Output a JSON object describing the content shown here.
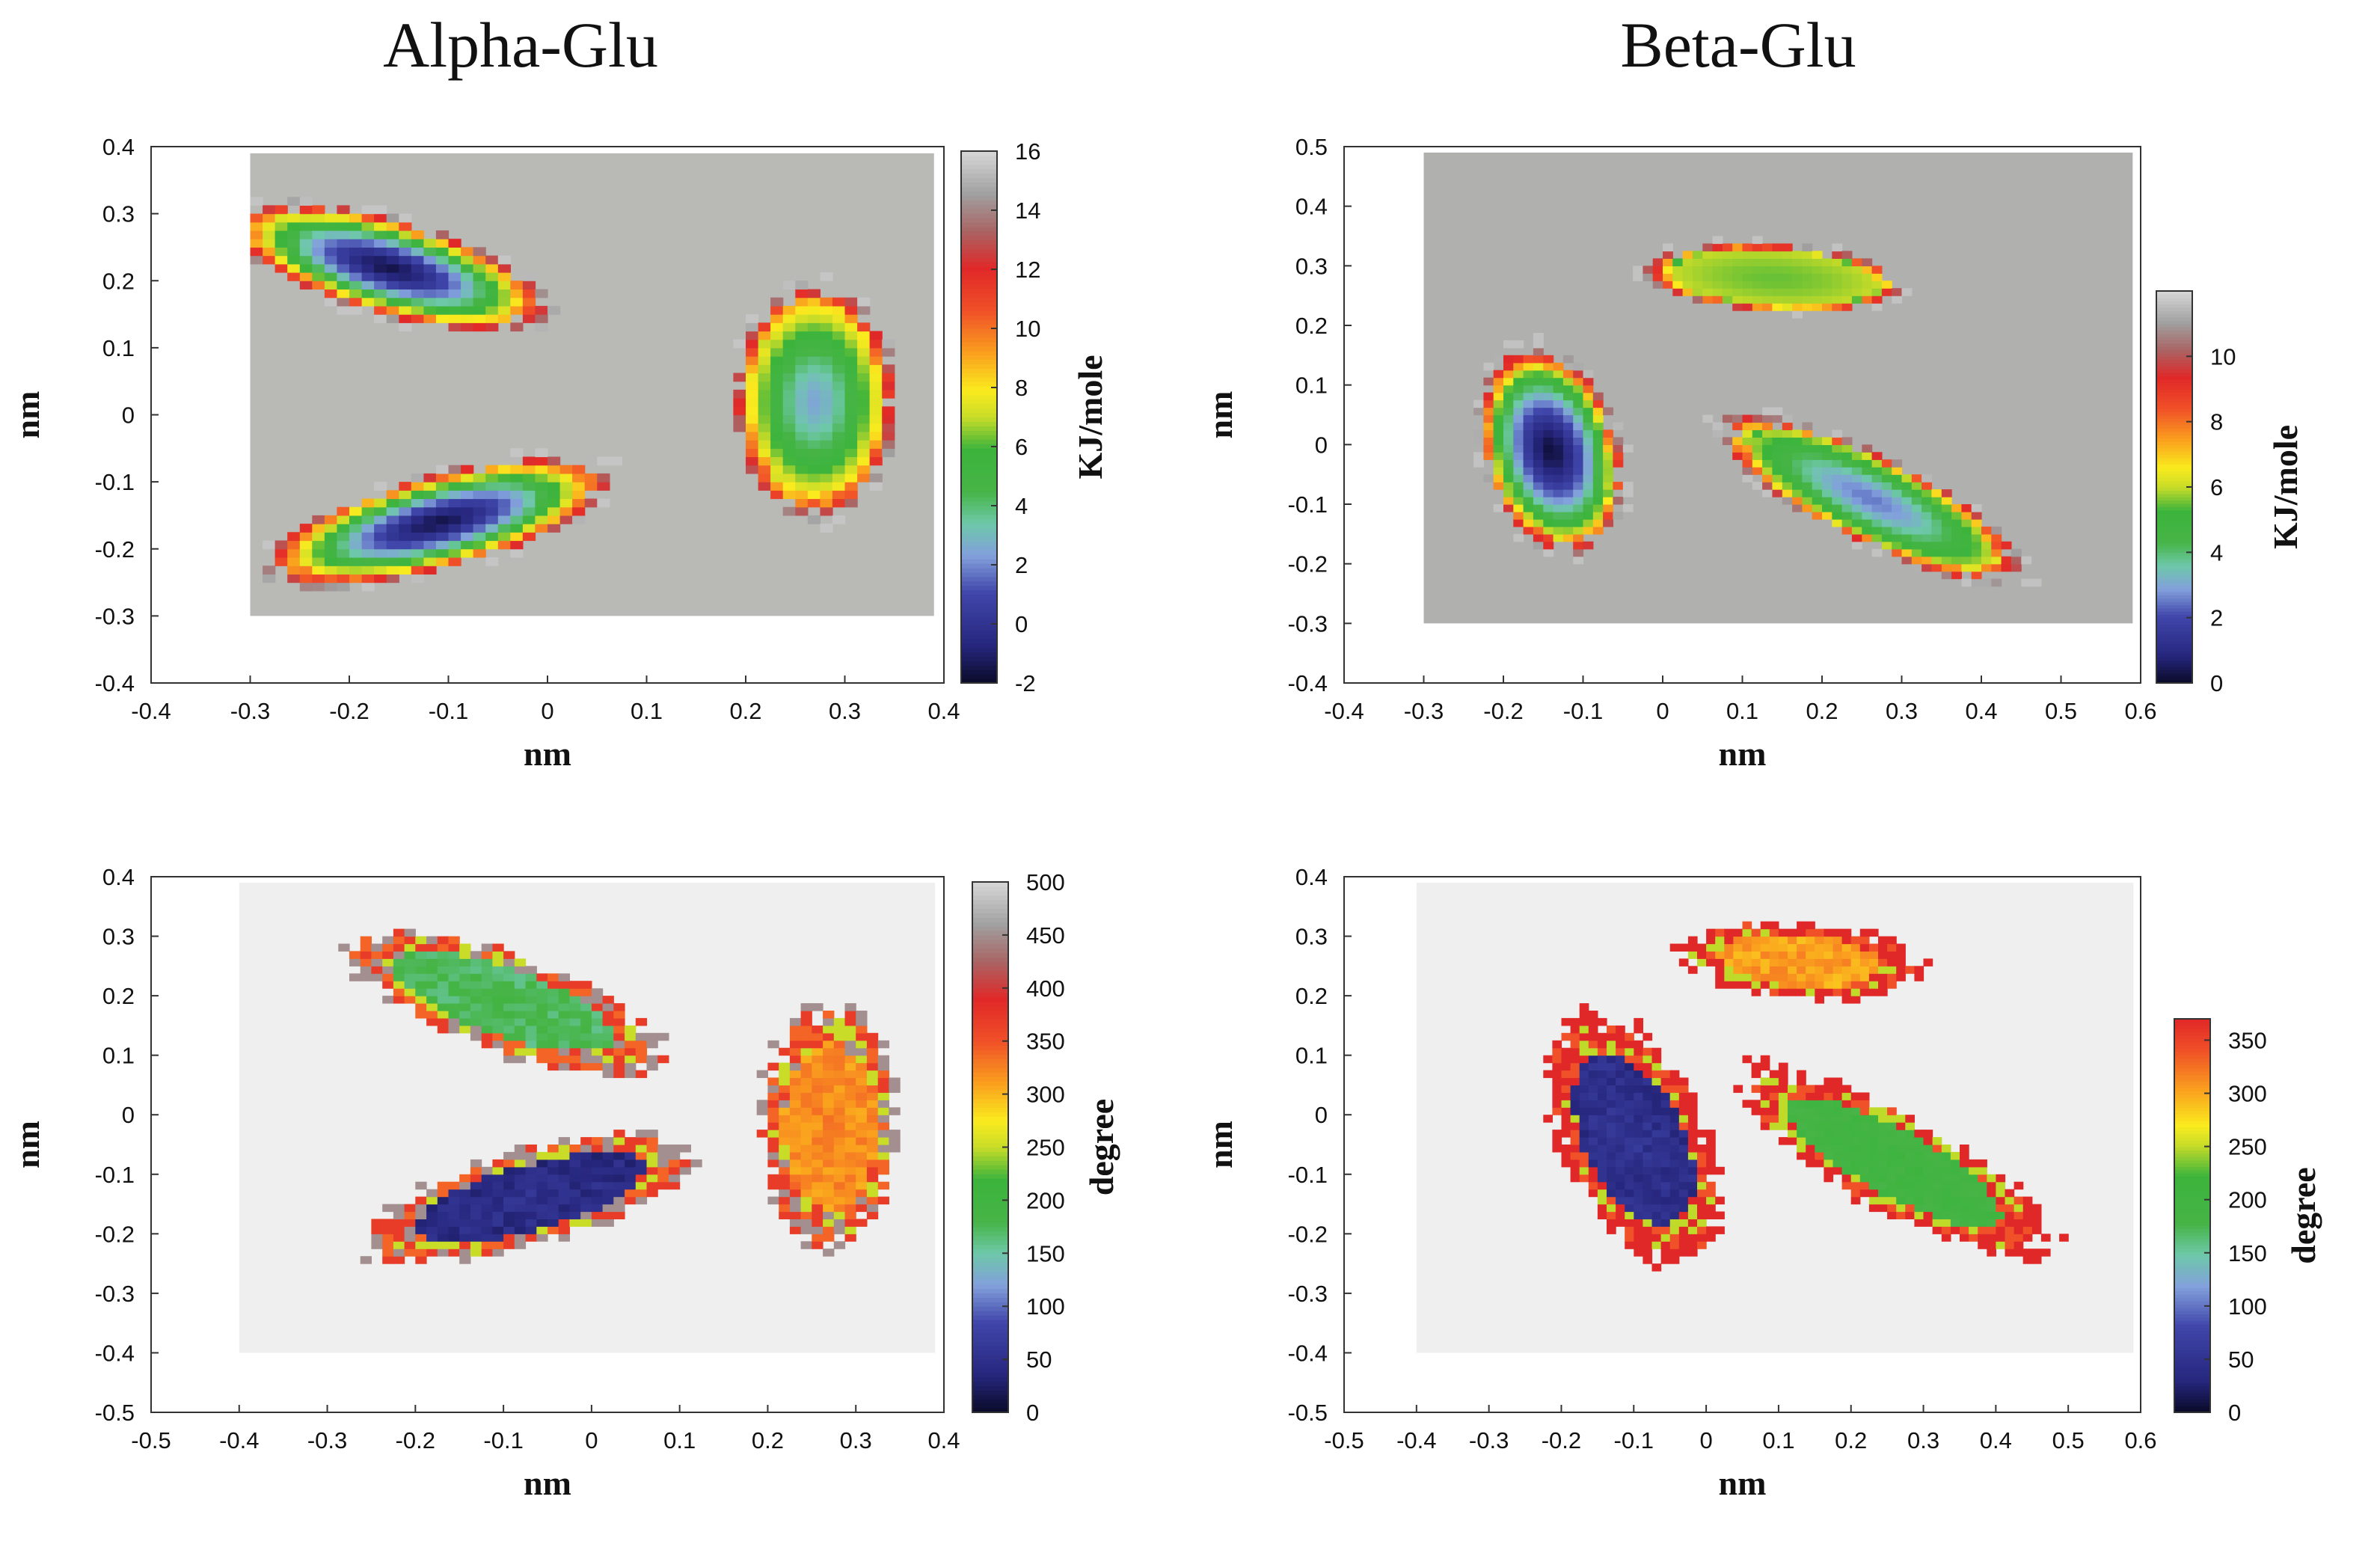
{
  "figure": {
    "left_title": "Alpha-Glu",
    "right_title": "Beta-Glu"
  },
  "colors": {
    "background_gray_energy": "#b9b9b6",
    "background_gray_angle": "#efefef",
    "panel_border": "#333333"
  },
  "chart_data": [
    {
      "id": "alpha_energy",
      "type": "heatmap",
      "title": "Alpha-Glu",
      "xlabel": "nm",
      "ylabel": "nm",
      "cbar_label": "KJ/mole",
      "xlim": [
        -0.4,
        0.4
      ],
      "ylim": [
        -0.4,
        0.4
      ],
      "x_ticks": [
        -0.4,
        -0.3,
        -0.2,
        -0.1,
        0,
        0.1,
        0.2,
        0.3,
        0.4
      ],
      "y_ticks": [
        -0.4,
        -0.3,
        -0.2,
        -0.1,
        0,
        0.1,
        0.2,
        0.3,
        0.4
      ],
      "data_extent": {
        "x": [
          -0.3,
          0.39
        ],
        "y": [
          -0.3,
          0.39
        ]
      },
      "background_color": "#b9b9b6",
      "cbar_ticks": [
        -2,
        0,
        2,
        4,
        6,
        8,
        10,
        12,
        14,
        16
      ],
      "cbar_range": [
        -2,
        16
      ],
      "cbar_scheme": "energy",
      "regions": [
        {
          "name": "upper-left arc",
          "center": [
            -0.16,
            0.22
          ],
          "rx": 0.14,
          "ry": 0.055,
          "rot": -25,
          "min": -1.5
        },
        {
          "name": "lower-left arc",
          "center": [
            -0.11,
            -0.16
          ],
          "rx": 0.15,
          "ry": 0.055,
          "rot": 23,
          "min": -1.5
        },
        {
          "name": "right lobe",
          "center": [
            0.27,
            0.02
          ],
          "rx": 0.065,
          "ry": 0.14,
          "rot": 0,
          "min": 2.5
        }
      ]
    },
    {
      "id": "beta_energy",
      "type": "heatmap",
      "title": "Beta-Glu",
      "xlabel": "nm",
      "ylabel": "nm",
      "cbar_label": "KJ/mole",
      "xlim": [
        -0.4,
        0.6
      ],
      "ylim": [
        -0.4,
        0.5
      ],
      "x_ticks": [
        -0.4,
        -0.3,
        -0.2,
        -0.1,
        0,
        0.1,
        0.2,
        0.3,
        0.4,
        0.5,
        0.6
      ],
      "y_ticks": [
        -0.4,
        -0.3,
        -0.2,
        -0.1,
        0,
        0.1,
        0.2,
        0.3,
        0.4,
        0.5
      ],
      "data_extent": {
        "x": [
          -0.3,
          0.59
        ],
        "y": [
          -0.3,
          0.49
        ]
      },
      "background_color": "#b0b0ae",
      "cbar_ticks": [
        0,
        2,
        4,
        6,
        8,
        10
      ],
      "cbar_range": [
        0,
        12
      ],
      "cbar_scheme": "energy",
      "regions": [
        {
          "name": "left lobe",
          "center": [
            -0.14,
            -0.01
          ],
          "rx": 0.07,
          "ry": 0.14,
          "rot": 10,
          "min": 0.2
        },
        {
          "name": "upper lobe",
          "center": [
            0.14,
            0.28
          ],
          "rx": 0.13,
          "ry": 0.045,
          "rot": -5,
          "min": 5.5
        },
        {
          "name": "right arc",
          "center": [
            0.26,
            -0.09
          ],
          "rx": 0.18,
          "ry": 0.055,
          "rot": -35,
          "min": 2.5
        }
      ]
    },
    {
      "id": "alpha_angle",
      "type": "heatmap",
      "xlabel": "nm",
      "ylabel": "nm",
      "cbar_label": "degree",
      "xlim": [
        -0.5,
        0.4
      ],
      "ylim": [
        -0.5,
        0.4
      ],
      "x_ticks": [
        -0.5,
        -0.4,
        -0.3,
        -0.2,
        -0.1,
        0,
        0.1,
        0.2,
        0.3,
        0.4
      ],
      "y_ticks": [
        -0.5,
        -0.4,
        -0.3,
        -0.2,
        -0.1,
        0,
        0.1,
        0.2,
        0.3,
        0.4
      ],
      "data_extent": {
        "x": [
          -0.4,
          0.39
        ],
        "y": [
          -0.4,
          0.39
        ]
      },
      "background_color": "#efefef",
      "cbar_ticks": [
        0,
        50,
        100,
        150,
        200,
        250,
        300,
        350,
        400,
        450,
        500
      ],
      "cbar_range": [
        0,
        500
      ],
      "cbar_scheme": "angle500",
      "regions": [
        {
          "name": "upper-left arc",
          "center": [
            -0.1,
            0.19
          ],
          "rx": 0.16,
          "ry": 0.06,
          "rot": -30,
          "value": 170
        },
        {
          "name": "lower-left arc",
          "center": [
            -0.07,
            -0.14
          ],
          "rx": 0.16,
          "ry": 0.06,
          "rot": 25,
          "value": 40
        },
        {
          "name": "right lobe",
          "center": [
            0.27,
            -0.02
          ],
          "rx": 0.06,
          "ry": 0.16,
          "rot": 0,
          "value": 315
        }
      ]
    },
    {
      "id": "beta_angle",
      "type": "heatmap",
      "xlabel": "nm",
      "ylabel": "nm",
      "cbar_label": "degree",
      "xlim": [
        -0.5,
        0.6
      ],
      "ylim": [
        -0.5,
        0.4
      ],
      "x_ticks": [
        -0.5,
        -0.4,
        -0.3,
        -0.2,
        -0.1,
        0,
        0.1,
        0.2,
        0.3,
        0.4,
        0.5,
        0.6
      ],
      "y_ticks": [
        -0.5,
        -0.4,
        -0.3,
        -0.2,
        -0.1,
        0,
        0.1,
        0.2,
        0.3,
        0.4
      ],
      "data_extent": {
        "x": [
          -0.4,
          0.59
        ],
        "y": [
          -0.4,
          0.39
        ]
      },
      "background_color": "#efefef",
      "cbar_ticks": [
        0,
        50,
        100,
        150,
        200,
        250,
        300,
        350
      ],
      "cbar_range": [
        0,
        370
      ],
      "cbar_scheme": "angle370",
      "regions": [
        {
          "name": "left lobe",
          "center": [
            -0.1,
            -0.04
          ],
          "rx": 0.08,
          "ry": 0.17,
          "rot": 20,
          "value": 40
        },
        {
          "name": "upper lobe",
          "center": [
            0.13,
            0.26
          ],
          "rx": 0.13,
          "ry": 0.05,
          "rot": -5,
          "value": 300
        },
        {
          "name": "right arc",
          "center": [
            0.26,
            -0.08
          ],
          "rx": 0.2,
          "ry": 0.06,
          "rot": -35,
          "value": 190
        }
      ]
    }
  ]
}
